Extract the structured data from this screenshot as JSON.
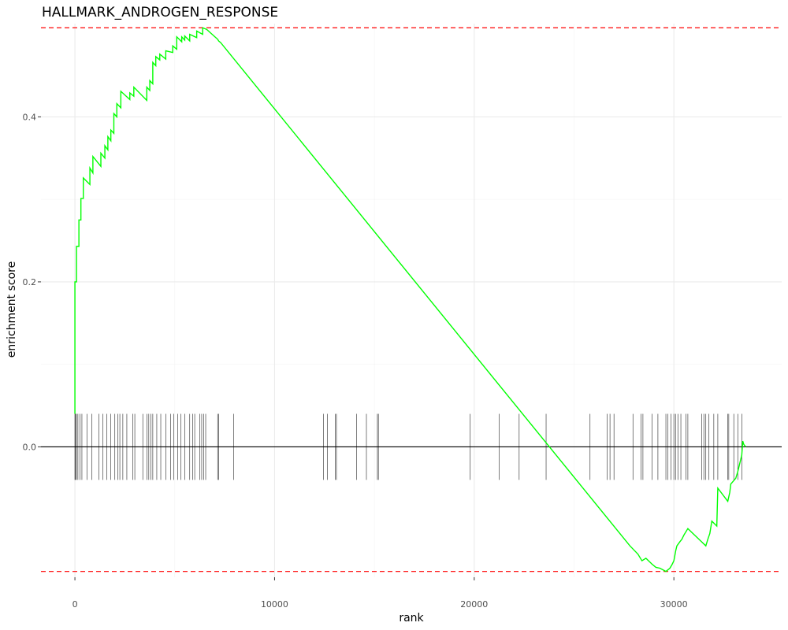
{
  "chart_data": {
    "type": "line",
    "title": "HALLMARK_ANDROGEN_RESPONSE",
    "xlabel": "rank",
    "ylabel": "enrichment score",
    "xlim": [
      -1700,
      35400
    ],
    "ylim": [
      -0.158,
      0.513
    ],
    "x_ticks": [
      {
        "value": 0,
        "label": "0"
      },
      {
        "value": 10000,
        "label": "10000"
      },
      {
        "value": 20000,
        "label": "20000"
      },
      {
        "value": 30000,
        "label": "30000"
      }
    ],
    "y_ticks": [
      {
        "value": 0.0,
        "label": "0.0"
      },
      {
        "value": 0.2,
        "label": "0.2"
      },
      {
        "value": 0.4,
        "label": "0.4"
      }
    ],
    "reference_lines": {
      "max_es": 0.508,
      "min_es": -0.151
    },
    "zero_line": 0,
    "hit_band": [
      -0.04,
      0.04
    ],
    "gene_hits": [
      0,
      30,
      80,
      150,
      250,
      350,
      600,
      850,
      1200,
      1400,
      1600,
      1800,
      2000,
      2150,
      2250,
      2400,
      2600,
      2900,
      3000,
      3400,
      3600,
      3700,
      3800,
      3900,
      4100,
      4300,
      4550,
      4800,
      4950,
      5150,
      5300,
      5500,
      5750,
      5900,
      6000,
      6250,
      6350,
      6450,
      6550,
      7150,
      7200,
      7950,
      12450,
      12650,
      13050,
      13100,
      14100,
      14600,
      15150,
      15200,
      19800,
      21250,
      22250,
      23600,
      25800,
      26650,
      26800,
      27000,
      27950,
      28350,
      28450,
      28900,
      29200,
      29600,
      29700,
      29850,
      30000,
      30100,
      30200,
      30350,
      30600,
      30700,
      31400,
      31500,
      31600,
      31750,
      32000,
      32200,
      32700,
      32750,
      33000,
      33200,
      33400
    ],
    "series": [
      {
        "name": "running enrichment score",
        "color": "#00ff00",
        "points": [
          [
            0,
            0.04
          ],
          [
            0,
            0.2
          ],
          [
            80,
            0.2
          ],
          [
            80,
            0.243
          ],
          [
            200,
            0.243
          ],
          [
            200,
            0.275
          ],
          [
            300,
            0.275
          ],
          [
            300,
            0.301
          ],
          [
            420,
            0.301
          ],
          [
            420,
            0.326
          ],
          [
            750,
            0.318
          ],
          [
            750,
            0.338
          ],
          [
            900,
            0.332
          ],
          [
            900,
            0.352
          ],
          [
            1300,
            0.34
          ],
          [
            1300,
            0.356
          ],
          [
            1500,
            0.35
          ],
          [
            1500,
            0.365
          ],
          [
            1650,
            0.36
          ],
          [
            1650,
            0.376
          ],
          [
            1800,
            0.371
          ],
          [
            1800,
            0.384
          ],
          [
            1950,
            0.38
          ],
          [
            1950,
            0.404
          ],
          [
            2100,
            0.4
          ],
          [
            2100,
            0.416
          ],
          [
            2300,
            0.411
          ],
          [
            2300,
            0.431
          ],
          [
            2750,
            0.421
          ],
          [
            2750,
            0.429
          ],
          [
            2950,
            0.425
          ],
          [
            2950,
            0.436
          ],
          [
            3600,
            0.42
          ],
          [
            3600,
            0.436
          ],
          [
            3750,
            0.432
          ],
          [
            3750,
            0.444
          ],
          [
            3900,
            0.44
          ],
          [
            3900,
            0.466
          ],
          [
            4050,
            0.462
          ],
          [
            4050,
            0.473
          ],
          [
            4250,
            0.469
          ],
          [
            4250,
            0.476
          ],
          [
            4550,
            0.47
          ],
          [
            4550,
            0.48
          ],
          [
            4900,
            0.478
          ],
          [
            4900,
            0.486
          ],
          [
            5100,
            0.482
          ],
          [
            5100,
            0.497
          ],
          [
            5350,
            0.491
          ],
          [
            5350,
            0.497
          ],
          [
            5500,
            0.493
          ],
          [
            5500,
            0.498
          ],
          [
            5750,
            0.492
          ],
          [
            5750,
            0.5
          ],
          [
            6100,
            0.496
          ],
          [
            6100,
            0.504
          ],
          [
            6400,
            0.5
          ],
          [
            6400,
            0.508
          ],
          [
            6600,
            0.506
          ],
          [
            7150,
            0.494
          ],
          [
            7200,
            0.492
          ],
          [
            7300,
            0.49
          ],
          [
            27800,
            -0.12
          ],
          [
            28000,
            -0.125
          ],
          [
            28200,
            -0.13
          ],
          [
            28400,
            -0.138
          ],
          [
            28600,
            -0.135
          ],
          [
            28900,
            -0.142
          ],
          [
            29100,
            -0.146
          ],
          [
            29300,
            -0.147
          ],
          [
            29600,
            -0.151
          ],
          [
            29800,
            -0.147
          ],
          [
            29900,
            -0.143
          ],
          [
            30000,
            -0.138
          ],
          [
            30100,
            -0.125
          ],
          [
            30150,
            -0.12
          ],
          [
            30300,
            -0.115
          ],
          [
            30400,
            -0.112
          ],
          [
            30500,
            -0.107
          ],
          [
            30700,
            -0.099
          ],
          [
            31600,
            -0.12
          ],
          [
            31700,
            -0.112
          ],
          [
            31800,
            -0.105
          ],
          [
            31900,
            -0.09
          ],
          [
            32150,
            -0.096
          ],
          [
            32200,
            -0.05
          ],
          [
            32700,
            -0.066
          ],
          [
            32800,
            -0.055
          ],
          [
            32850,
            -0.045
          ],
          [
            33100,
            -0.038
          ],
          [
            33200,
            -0.03
          ],
          [
            33300,
            -0.02
          ],
          [
            33400,
            -0.01
          ],
          [
            33450,
            0.007
          ],
          [
            33500,
            0.003
          ],
          [
            33600,
            0.0
          ]
        ]
      }
    ]
  }
}
